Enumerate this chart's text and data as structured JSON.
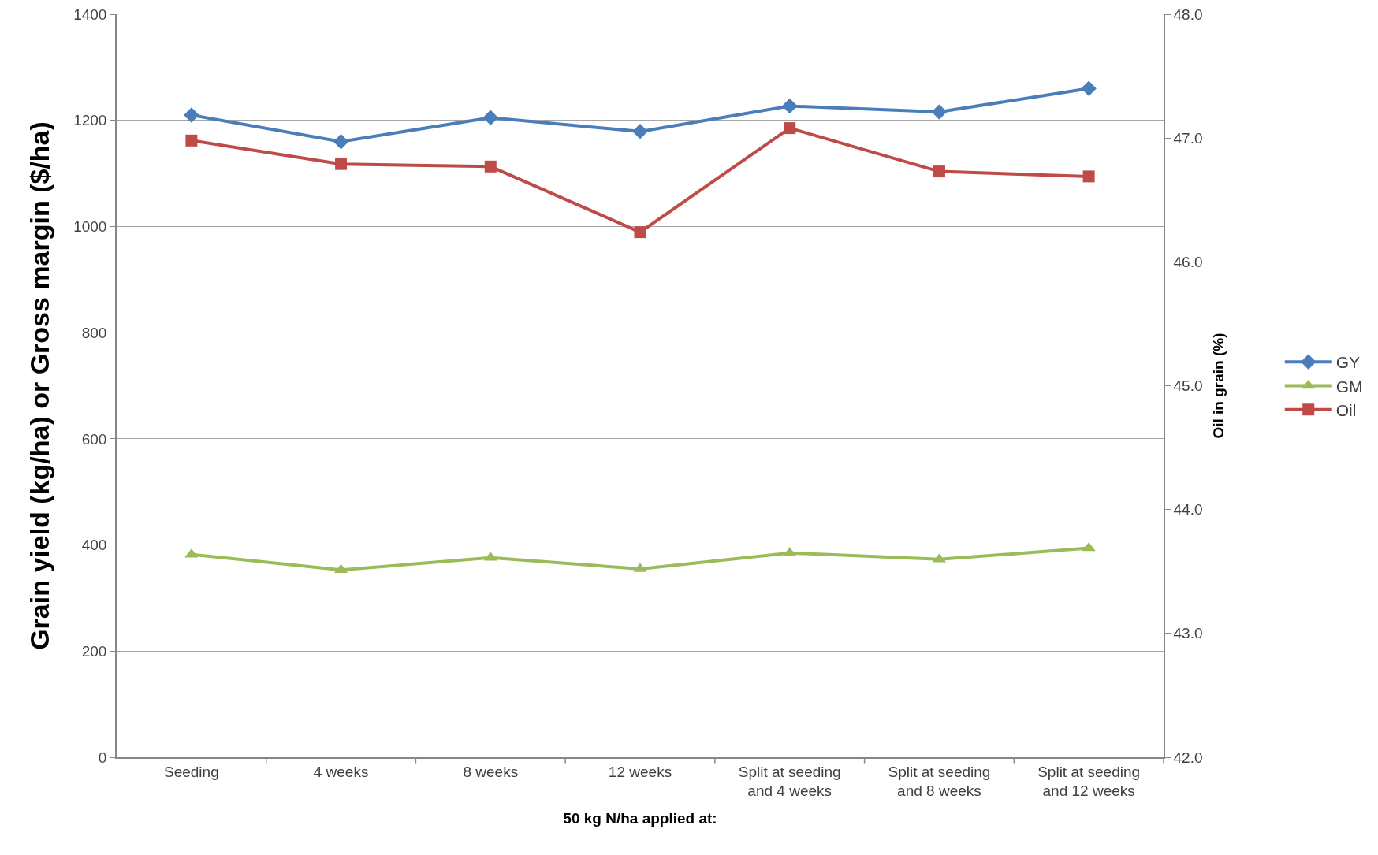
{
  "chart_data": {
    "type": "line",
    "xlabel": "50 kg N/ha applied at:",
    "ylabel": "Grain yield (kg/ha) or Gross margin ($/ha)",
    "y2label": "Oil in grain (%)",
    "categories": [
      "Seeding",
      "4 weeks",
      "8 weeks",
      "12 weeks",
      "Split at seeding and 4 weeks",
      "Split at seeding and 8 weeks",
      "Split at seeding and 12 weeks"
    ],
    "series": [
      {
        "name": "GY",
        "color": "#4a7ebb",
        "marker": "diamond",
        "values": [
          1210,
          1160,
          1205,
          1179,
          1227,
          1216,
          1260
        ]
      },
      {
        "name": "GM",
        "color": "#9bbb59",
        "marker": "triangle",
        "values": [
          382,
          353,
          376,
          355,
          385,
          373,
          394
        ]
      },
      {
        "name": "Oil",
        "color": "#be4b48",
        "marker": "square",
        "axis": "y2",
        "values": [
          46.98,
          46.79,
          46.77,
          46.24,
          47.08,
          46.73,
          46.69
        ]
      }
    ],
    "ylim": [
      0,
      1400
    ],
    "yticks": [
      0,
      200,
      400,
      600,
      800,
      1000,
      1200,
      1400
    ],
    "y2lim": [
      42,
      48
    ],
    "y2ticks": [
      {
        "value": 42,
        "label": "42.0"
      },
      {
        "value": 43,
        "label": "43.0"
      },
      {
        "value": 44,
        "label": "44.0"
      },
      {
        "value": 45,
        "label": "45.0"
      },
      {
        "value": 46,
        "label": "46.0"
      },
      {
        "value": 47,
        "label": "47.0"
      },
      {
        "value": 48,
        "label": "48.0"
      }
    ],
    "grid": "y",
    "legend": "right",
    "line_style": "solid"
  }
}
